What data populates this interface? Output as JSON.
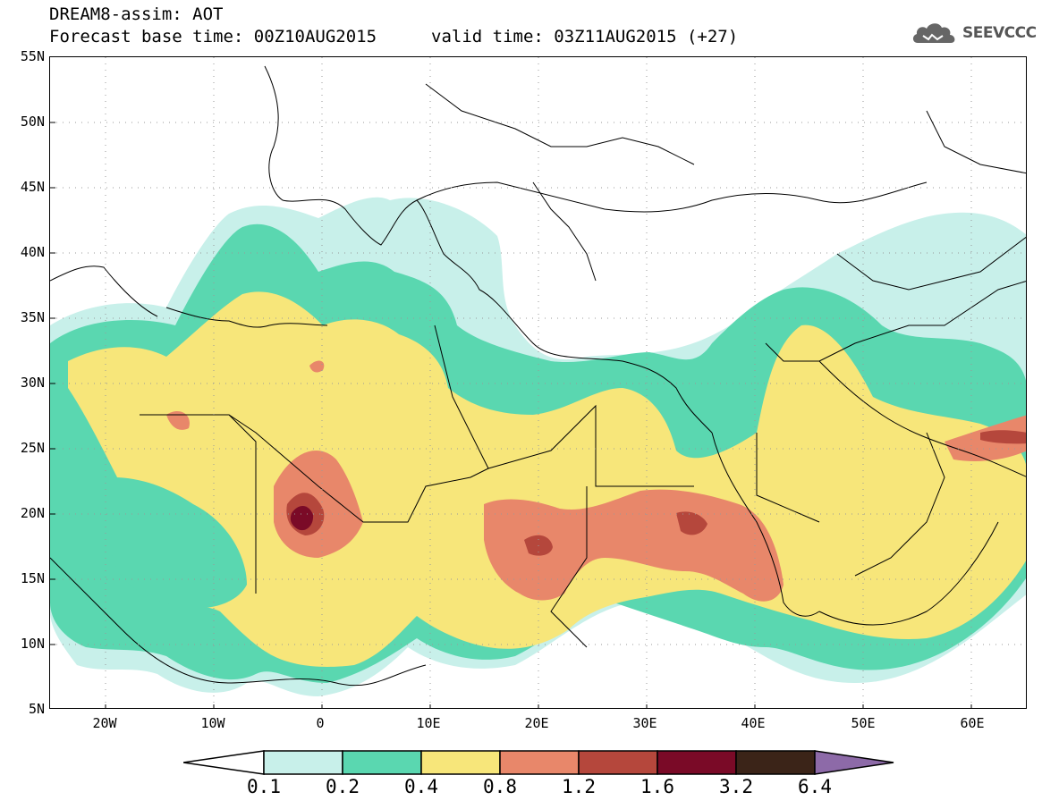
{
  "title": {
    "line1": "DREAM8-assim: AOT",
    "base_time": "Forecast base time: 00Z10AUG2015",
    "valid_time": "valid time: 03Z11AUG2015 (+27)"
  },
  "logo": {
    "icon": "cloud-logo-icon",
    "text": "SEEVCCC"
  },
  "map": {
    "lat_ticks": [
      "55N",
      "50N",
      "45N",
      "40N",
      "35N",
      "30N",
      "25N",
      "20N",
      "15N",
      "10N",
      "5N"
    ],
    "lon_ticks": [
      "20W",
      "10W",
      "0",
      "10E",
      "20E",
      "30E",
      "40E",
      "50E",
      "60E"
    ],
    "extent": {
      "lon_min": -25,
      "lon_max": 65,
      "lat_min": 5,
      "lat_max": 55
    },
    "gridlines": "dotted"
  },
  "colorbar": {
    "levels": [
      "0.1",
      "0.2",
      "0.4",
      "0.8",
      "1.2",
      "1.6",
      "3.2",
      "6.4"
    ],
    "colors": {
      "below": "#ffffff",
      "c1": "#c8f0ea",
      "c2": "#5ad7b0",
      "c3": "#f7e67a",
      "c4": "#e8876a",
      "c5": "#b5473c",
      "c6": "#7a0a27",
      "c7": "#3b2418",
      "above": "#8d6aa8"
    }
  }
}
